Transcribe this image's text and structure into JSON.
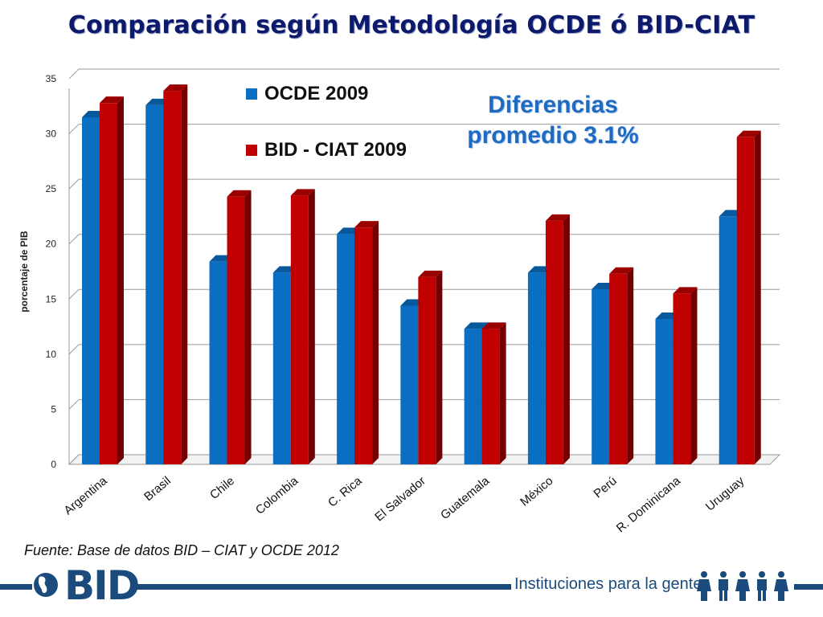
{
  "title": "Comparación según Metodología OCDE ó BID-CIAT",
  "annotation": [
    "Diferencias",
    "promedio 3.1%"
  ],
  "source": "Fuente: Base de datos BID – CIAT y OCDE 2012",
  "footer": {
    "brand": "BID",
    "tagline": "Instituciones para la gente"
  },
  "colors": {
    "ocde": "#0a6fc2",
    "bid_ciat": "#c00000",
    "title": "#0d1a6b",
    "brand": "#1b4b7c"
  },
  "chart_data": {
    "type": "bar",
    "categories": [
      "Argentina",
      "Brasil",
      "Chile",
      "Colombia",
      "C. Rica",
      "El Salvador",
      "Guatemala",
      "México",
      "Perú",
      "R. Dominicana",
      "Uruguay"
    ],
    "series": [
      {
        "name": "OCDE 2009",
        "values": [
          31.5,
          32.6,
          18.4,
          17.4,
          20.9,
          14.4,
          12.3,
          17.4,
          15.9,
          13.2,
          22.5
        ]
      },
      {
        "name": "BID - CIAT 2009",
        "values": [
          32.8,
          33.9,
          24.3,
          24.4,
          21.5,
          17.0,
          12.3,
          22.1,
          17.3,
          15.5,
          29.7
        ]
      }
    ],
    "xlabel": "",
    "ylabel": "porcentaje de PIB",
    "ylim": [
      0,
      35
    ],
    "yticks": [
      0,
      5,
      10,
      15,
      20,
      25,
      30,
      35
    ],
    "grid": true,
    "legend": "top-left inside"
  }
}
